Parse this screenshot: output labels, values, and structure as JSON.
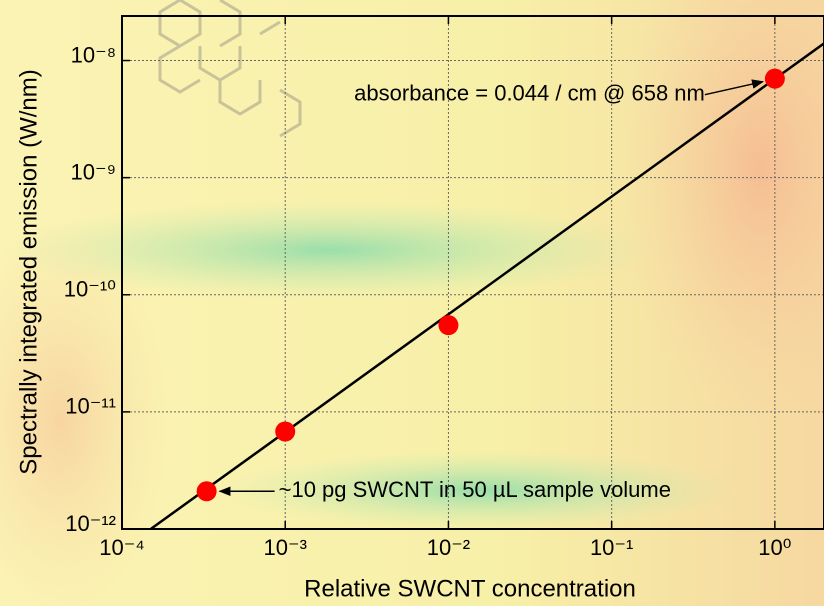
{
  "chart_data": {
    "type": "scatter",
    "xlabel": "Relative SWCNT concentration",
    "ylabel": "Spectrally integrated emission (W/nm)",
    "x": [
      0.00033,
      0.001,
      0.01,
      1
    ],
    "values": [
      2.1e-12,
      6.8e-12,
      5.5e-11,
      7e-09
    ],
    "color": "#ff0000",
    "fit": {
      "x": [
        0.00015,
        2
      ],
      "values": [
        1e-12,
        1.4e-08
      ],
      "color": "#000000"
    },
    "xscale": "log",
    "yscale": "log",
    "xlim": [
      0.0001,
      2
    ],
    "ylim": [
      1e-12,
      2.4e-08
    ],
    "xticks": [
      {
        "value": 0.0001,
        "label": "10⁻⁴"
      },
      {
        "value": 0.001,
        "label": "10⁻³"
      },
      {
        "value": 0.01,
        "label": "10⁻²"
      },
      {
        "value": 0.1,
        "label": "10⁻¹"
      },
      {
        "value": 1,
        "label": "10⁰"
      }
    ],
    "yticks": [
      {
        "value": 1e-12,
        "label": "10⁻¹²"
      },
      {
        "value": 1e-11,
        "label": "10⁻¹¹"
      },
      {
        "value": 1e-10,
        "label": "10⁻¹⁰"
      },
      {
        "value": 1e-09,
        "label": "10⁻⁹"
      },
      {
        "value": 1e-08,
        "label": "10⁻⁸"
      }
    ],
    "grid": true,
    "annotations": [
      {
        "text": "absorbance = 0.044 / cm @ 658 nm",
        "point": 3
      },
      {
        "text": "~10 pg SWCNT in 50 µL sample volume",
        "point": 0
      }
    ]
  }
}
